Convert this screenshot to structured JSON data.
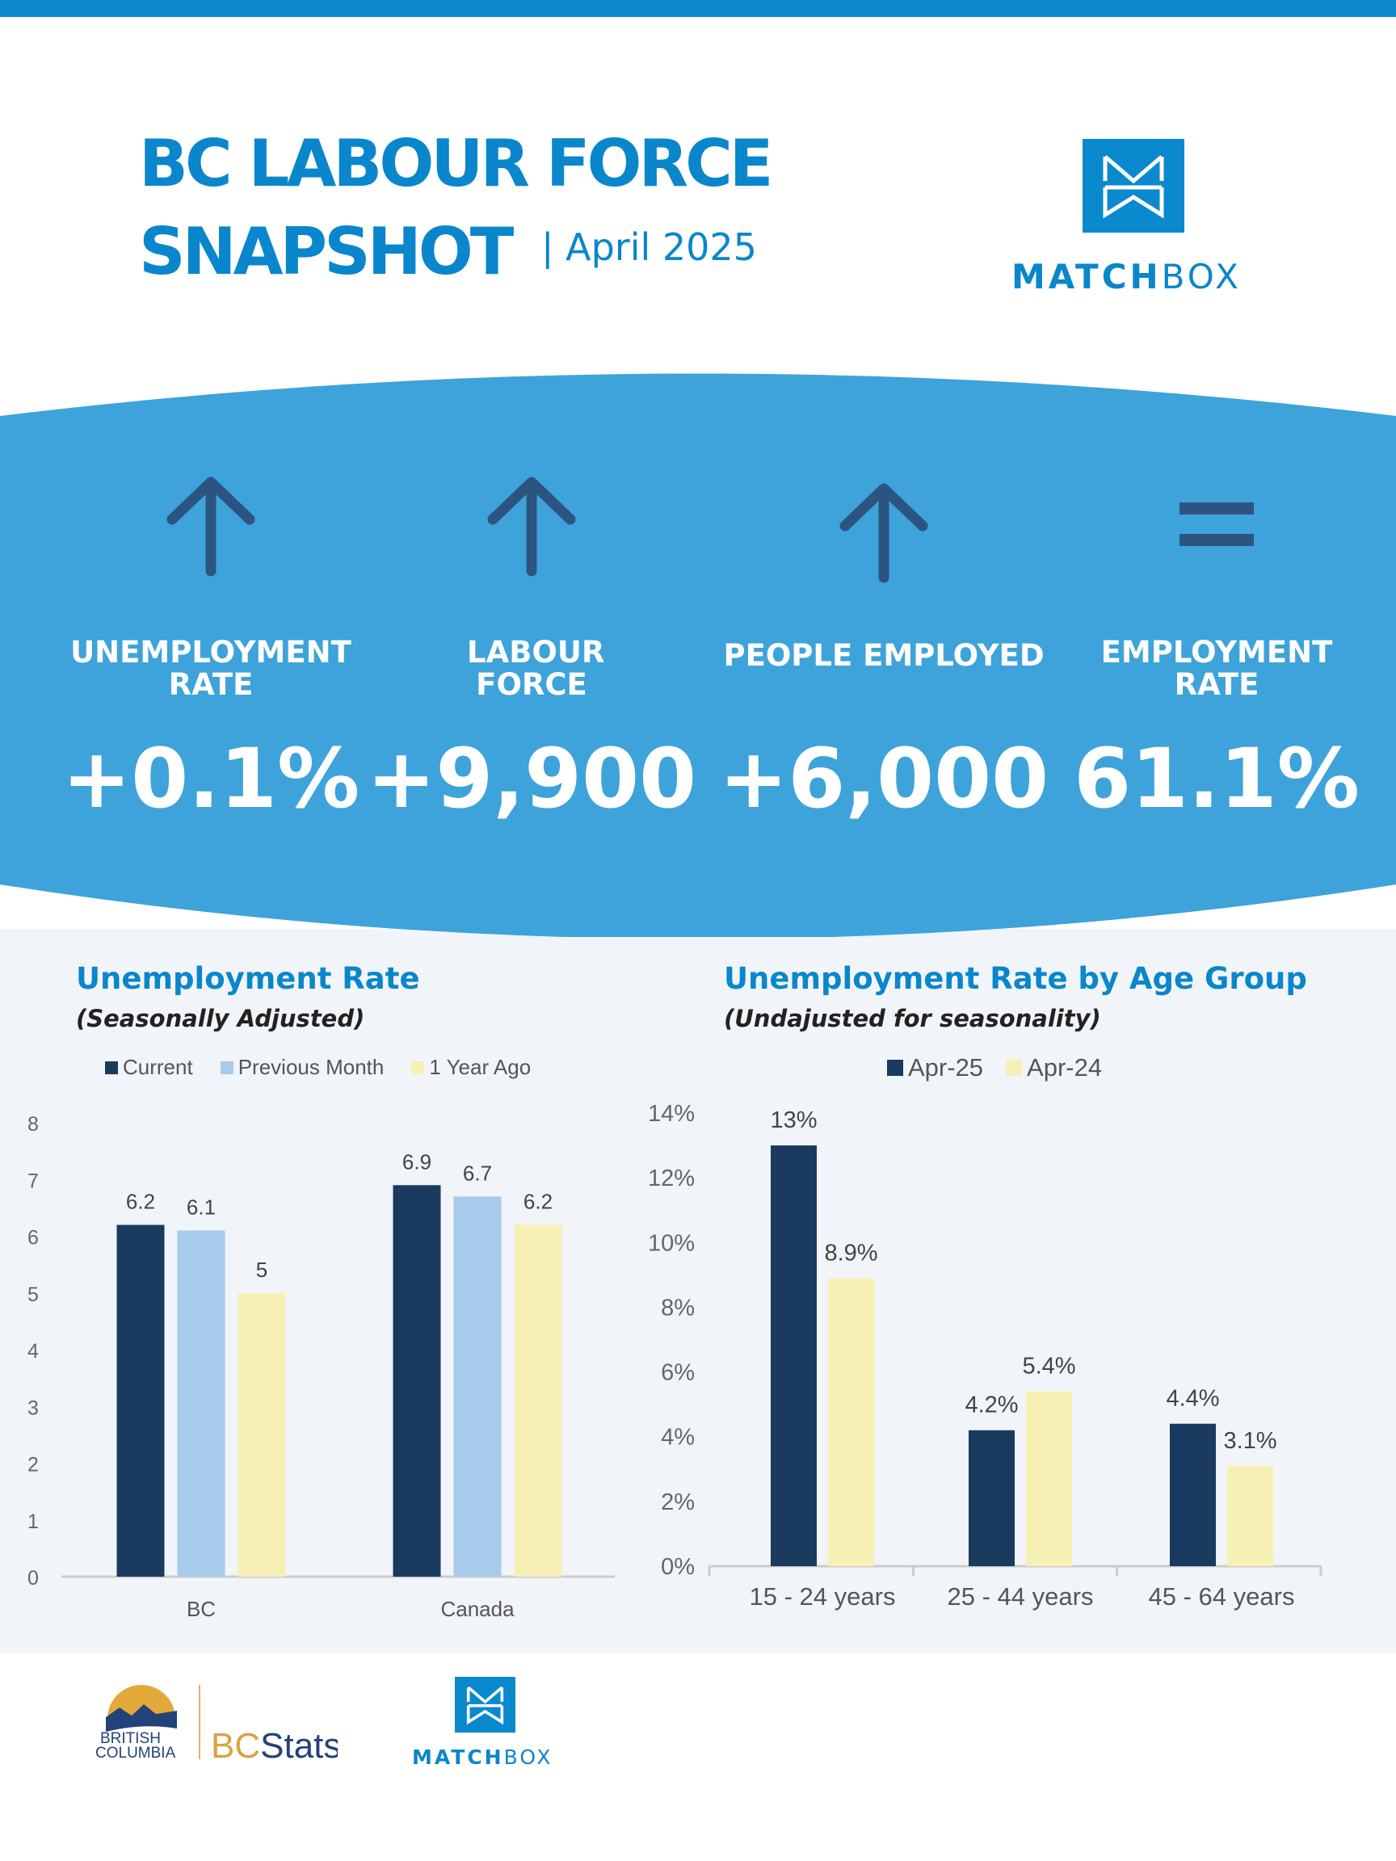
{
  "header": {
    "title_line1": "BC LABOUR FORCE",
    "title_line2": "SNAPSHOT",
    "date": "| April 2025",
    "logo_text_bold": "MATCH",
    "logo_text_light": "BOX"
  },
  "colors": {
    "brand_blue": "#0A86CC",
    "band_blue": "#3EA3DA",
    "arrow": "#2C5480",
    "navy": "#1A3A5F",
    "light_blue": "#A8CBEB",
    "yellow": "#F7F0B5"
  },
  "kpis": [
    {
      "label": "UNEMPLOYMENT RATE",
      "value": "+0.1%",
      "icon": "arrow-up-icon"
    },
    {
      "label": "LABOUR FORCE",
      "value": "+9,900",
      "icon": "arrow-up-icon"
    },
    {
      "label": "PEOPLE EMPLOYED",
      "value": "+6,000",
      "icon": "arrow-up-icon"
    },
    {
      "label": "EMPLOYMENT RATE",
      "value": "61.1%",
      "icon": "equals-icon"
    }
  ],
  "chart_data": [
    {
      "type": "bar",
      "title": "Unemployment Rate",
      "subtitle": "(Seasonally Adjusted)",
      "categories": [
        "BC",
        "Canada"
      ],
      "series": [
        {
          "name": "Current",
          "values": [
            6.2,
            6.9
          ],
          "color": "#1A3A5F"
        },
        {
          "name": "Previous Month",
          "values": [
            6.1,
            6.7
          ],
          "color": "#A8CBEB"
        },
        {
          "name": "1 Year Ago",
          "values": [
            5,
            6.2
          ],
          "color": "#F7F0B5"
        }
      ],
      "data_labels": [
        [
          "6.2",
          "6.9"
        ],
        [
          "6.1",
          "6.7"
        ],
        [
          "5",
          "6.2"
        ]
      ],
      "ylim": [
        0,
        8
      ],
      "yticks": [
        "0",
        "1",
        "2",
        "3",
        "4",
        "5",
        "6",
        "7",
        "8"
      ],
      "legend": "top",
      "grid": false
    },
    {
      "type": "bar",
      "title": "Unemployment Rate by Age Group",
      "subtitle": "(Undajusted for seasonality)",
      "categories": [
        "15 - 24 years",
        "25 - 44 years",
        "45 - 64 years"
      ],
      "series": [
        {
          "name": "Apr-25",
          "values": [
            13,
            4.2,
            4.4
          ],
          "color": "#1A3A5F"
        },
        {
          "name": "Apr-24",
          "values": [
            8.9,
            5.4,
            3.1
          ],
          "color": "#F7F0B5"
        }
      ],
      "data_labels": [
        [
          "13%",
          "4.2%",
          "4.4%"
        ],
        [
          "8.9%",
          "5.4%",
          "3.1%"
        ]
      ],
      "ylim": [
        0,
        14
      ],
      "yticks": [
        "0%",
        "2%",
        "4%",
        "6%",
        "8%",
        "10%",
        "12%",
        "14%"
      ],
      "legend": "top",
      "grid": false
    }
  ],
  "footer": {
    "bc_logo_text": "BRITISH COLUMBIA",
    "bcstats_text": "BCStats",
    "matchbox_bold": "MATCH",
    "matchbox_light": "BOX"
  }
}
